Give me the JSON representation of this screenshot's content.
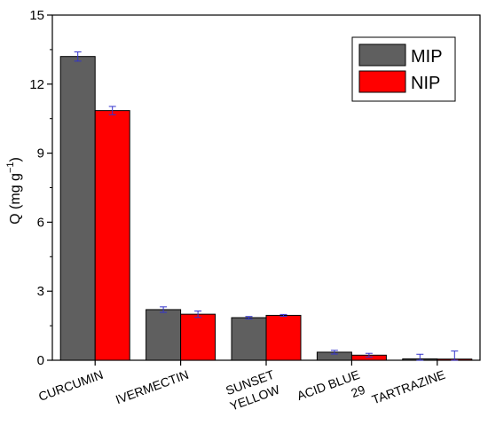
{
  "chart_data": {
    "type": "bar",
    "categories": [
      [
        "CURCUMIN"
      ],
      [
        "IVERMECTIN"
      ],
      [
        "SUNSET",
        "YELLOW"
      ],
      [
        "ACID BLUE",
        "29"
      ],
      [
        "TARTRAZINE"
      ]
    ],
    "series": [
      {
        "name": "MIP",
        "color": "#5f5f5f",
        "values": [
          13.2,
          2.2,
          1.85,
          0.35,
          0.06
        ],
        "errors": [
          0.2,
          0.12,
          0.05,
          0.08,
          0.2
        ]
      },
      {
        "name": "NIP",
        "color": "#ff0000",
        "values": [
          10.85,
          2.0,
          1.95,
          0.22,
          0.05
        ],
        "errors": [
          0.18,
          0.14,
          0.04,
          0.08,
          0.35
        ]
      }
    ],
    "ylabel": {
      "main": "Q (mg g",
      "sup": "−1",
      "close": ")"
    },
    "ylim": [
      0,
      15
    ],
    "yticks": [
      "0",
      "3",
      "6",
      "9",
      "12",
      "15"
    ],
    "legend_position": "top-right",
    "grid": false,
    "error_bar_color": "#3333cc"
  }
}
